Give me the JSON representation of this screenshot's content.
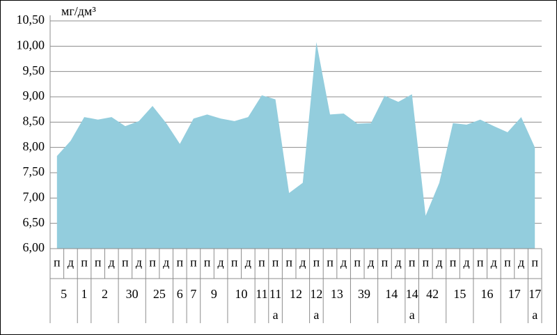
{
  "chart_data": {
    "type": "area",
    "unit_label": "мг/дм³",
    "color": "#93cddd",
    "grid": true,
    "ylim": [
      6.0,
      10.5
    ],
    "yticks": [
      {
        "value": 6.0,
        "label": "6,00"
      },
      {
        "value": 6.5,
        "label": "6,50"
      },
      {
        "value": 7.0,
        "label": "7,00"
      },
      {
        "value": 7.5,
        "label": "7,50"
      },
      {
        "value": 8.0,
        "label": "8,00"
      },
      {
        "value": 8.5,
        "label": "8,50"
      },
      {
        "value": 9.0,
        "label": "9,00"
      },
      {
        "value": 9.5,
        "label": "9,50"
      },
      {
        "value": 10.0,
        "label": "10,00"
      },
      {
        "value": 10.5,
        "label": "10,50"
      }
    ],
    "groups": [
      {
        "label": [
          "5"
        ],
        "categories": [
          "п",
          "д"
        ],
        "values": [
          7.83,
          8.13
        ]
      },
      {
        "label": [
          "1"
        ],
        "categories": [
          "п"
        ],
        "values": [
          8.6
        ]
      },
      {
        "label": [
          "2"
        ],
        "categories": [
          "п",
          "д"
        ],
        "values": [
          8.55,
          8.6
        ]
      },
      {
        "label": [
          "30"
        ],
        "categories": [
          "п",
          "д"
        ],
        "values": [
          8.42,
          8.52
        ]
      },
      {
        "label": [
          "25"
        ],
        "categories": [
          "п",
          "д"
        ],
        "values": [
          8.82,
          8.48
        ]
      },
      {
        "label": [
          "6"
        ],
        "categories": [
          "п"
        ],
        "values": [
          8.07
        ]
      },
      {
        "label": [
          "7"
        ],
        "categories": [
          "п"
        ],
        "values": [
          8.57
        ]
      },
      {
        "label": [
          "9"
        ],
        "categories": [
          "п",
          "д"
        ],
        "values": [
          8.65,
          8.57
        ]
      },
      {
        "label": [
          "10"
        ],
        "categories": [
          "п",
          "д"
        ],
        "values": [
          8.52,
          8.6
        ]
      },
      {
        "label": [
          "11"
        ],
        "categories": [
          "п"
        ],
        "values": [
          9.03
        ]
      },
      {
        "label": [
          "11",
          "а"
        ],
        "categories": [
          "п"
        ],
        "values": [
          8.95
        ]
      },
      {
        "label": [
          "12"
        ],
        "categories": [
          "п",
          "д"
        ],
        "values": [
          7.1,
          7.3
        ]
      },
      {
        "label": [
          "12",
          "а"
        ],
        "categories": [
          "п"
        ],
        "values": [
          10.08
        ]
      },
      {
        "label": [
          "13"
        ],
        "categories": [
          "п",
          "д"
        ],
        "values": [
          8.65,
          8.67
        ]
      },
      {
        "label": [
          "39"
        ],
        "categories": [
          "п",
          "д"
        ],
        "values": [
          8.47,
          8.48
        ]
      },
      {
        "label": [
          "14"
        ],
        "categories": [
          "п",
          "д"
        ],
        "values": [
          9.02,
          8.9
        ]
      },
      {
        "label": [
          "14",
          "а"
        ],
        "categories": [
          "п"
        ],
        "values": [
          9.05
        ]
      },
      {
        "label": [
          "42"
        ],
        "categories": [
          "п",
          "д"
        ],
        "values": [
          6.65,
          7.3
        ]
      },
      {
        "label": [
          "15"
        ],
        "categories": [
          "п",
          "д"
        ],
        "values": [
          8.48,
          8.45
        ]
      },
      {
        "label": [
          "16"
        ],
        "categories": [
          "п",
          "д"
        ],
        "values": [
          8.55,
          8.42
        ]
      },
      {
        "label": [
          "17"
        ],
        "categories": [
          "п",
          "д"
        ],
        "values": [
          8.3,
          8.6
        ]
      },
      {
        "label": [
          "17",
          "а"
        ],
        "categories": [
          "п"
        ],
        "values": [
          8.0
        ]
      }
    ]
  }
}
